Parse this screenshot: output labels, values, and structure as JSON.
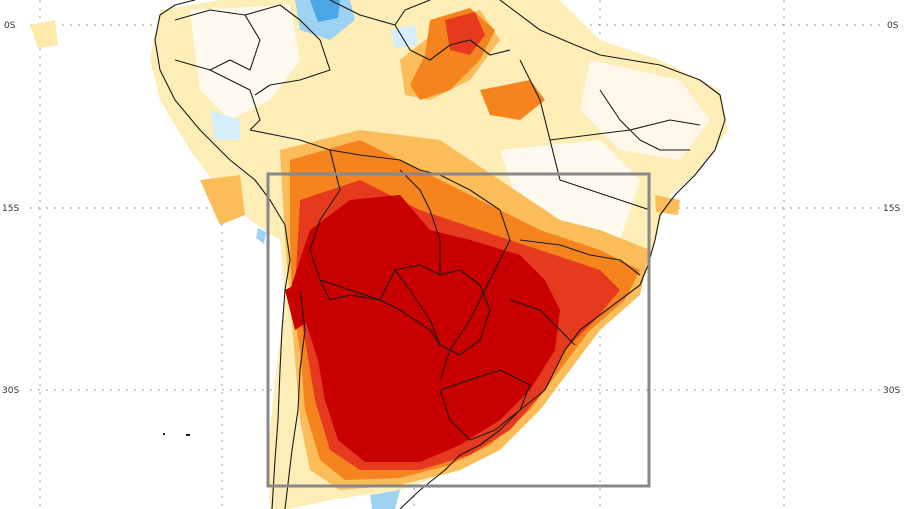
{
  "map": {
    "latitude_labels": [
      {
        "label": "0S",
        "latitude": 0
      },
      {
        "label": "15S",
        "latitude": -15
      },
      {
        "label": "30S",
        "latitude": -30
      }
    ],
    "gridlines": "dotted",
    "region_box": "south-central South America",
    "anomaly_colors": {
      "extreme_positive": "#c80000",
      "strong_positive": "#e63a1e",
      "moderate_positive": "#f5841f",
      "weak_positive": "#fbbd5a",
      "slight_positive": "#fde9a8",
      "near_zero": "#ffffff",
      "slight_negative": "#d6eefa",
      "weak_negative": "#9dd2f3",
      "moderate_negative": "#4aa6e6"
    },
    "border_color": "#1a1a1a",
    "box_color": "#888888"
  }
}
